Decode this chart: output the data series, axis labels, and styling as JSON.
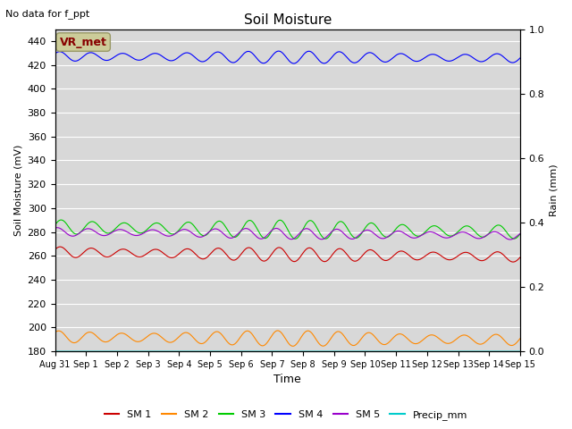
{
  "title": "Soil Moisture",
  "xlabel": "Time",
  "ylabel_left": "Soil Moisture (mV)",
  "ylabel_right": "Rain (mm)",
  "annotation": "No data for f_ppt",
  "vr_met_label": "VR_met",
  "ylim_left": [
    180,
    450
  ],
  "ylim_right": [
    0.0,
    1.0
  ],
  "yticks_left": [
    180,
    200,
    220,
    240,
    260,
    280,
    300,
    320,
    340,
    360,
    380,
    400,
    420,
    440
  ],
  "yticks_right": [
    0.0,
    0.2,
    0.4,
    0.6,
    0.8,
    1.0
  ],
  "xtick_labels": [
    "Aug 31",
    "Sep 1",
    "Sep 2",
    "Sep 3",
    "Sep 4",
    "Sep 5",
    "Sep 6",
    "Sep 7",
    "Sep 8",
    "Sep 9",
    "Sep 10",
    "Sep 11",
    "Sep 12",
    "Sep 13",
    "Sep 14",
    "Sep 15"
  ],
  "series": {
    "SM1": {
      "color": "#cc0000",
      "label": "SM 1",
      "base": 263,
      "amplitude": 4.5,
      "freq": 1.0,
      "trend": -0.25,
      "phase": 0.2
    },
    "SM2": {
      "color": "#ff8800",
      "label": "SM 2",
      "base": 192,
      "amplitude": 5.0,
      "freq": 1.0,
      "trend": -0.15,
      "phase": 0.5
    },
    "SM3": {
      "color": "#00cc00",
      "label": "SM 3",
      "base": 284,
      "amplitude": 6.0,
      "freq": 1.0,
      "trend": -0.25,
      "phase": 0.0
    },
    "SM4": {
      "color": "#0000ff",
      "label": "SM 4",
      "base": 427,
      "amplitude": 4.0,
      "freq": 1.0,
      "trend": -0.08,
      "phase": 0.3
    },
    "SM5": {
      "color": "#9900cc",
      "label": "SM 5",
      "base": 280,
      "amplitude": 3.5,
      "freq": 1.0,
      "trend": -0.2,
      "phase": 0.8
    },
    "Precip_mm": {
      "color": "#00cccc",
      "label": "Precip_mm",
      "base": 0,
      "amplitude": 0,
      "freq": 0,
      "trend": 0,
      "phase": 0
    }
  },
  "bg_color": "#d8d8d8",
  "plot_bg_color": "#d8d8d8",
  "outer_bg": "#ffffff",
  "grid_color": "white",
  "vr_met_bg": "#cccc99",
  "vr_met_fg": "#880000",
  "vr_met_edge": "#999966",
  "figsize": [
    6.4,
    4.8
  ],
  "dpi": 100
}
